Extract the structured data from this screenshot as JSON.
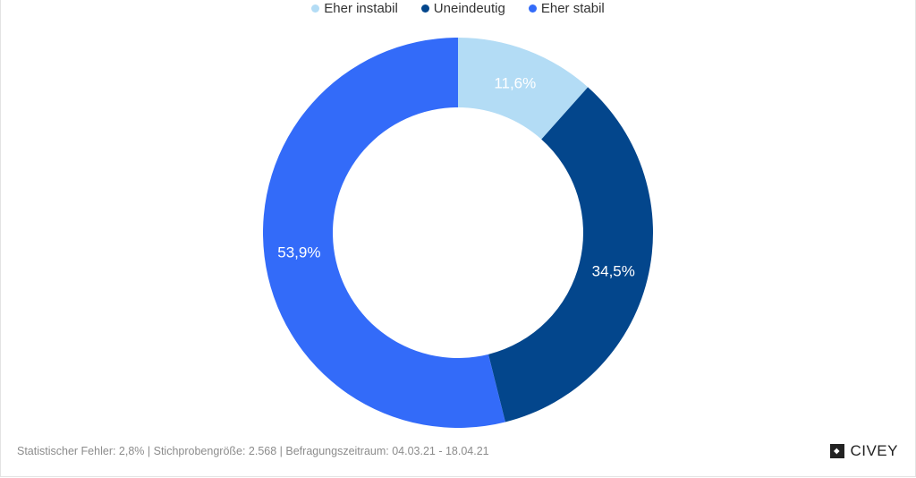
{
  "chart_data": {
    "type": "pie",
    "donut": true,
    "series": [
      {
        "name": "Eher instabil",
        "value": 11.6,
        "label": "11,6%",
        "color": "#b3dcf5"
      },
      {
        "name": "Uneindeutig",
        "value": 34.5,
        "label": "34,5%",
        "color": "#03468c"
      },
      {
        "name": "Eher stabil",
        "value": 53.9,
        "label": "53,9%",
        "color": "#336bf9"
      }
    ],
    "legend_position": "top-center"
  },
  "footer": {
    "note": "Statistischer Fehler: 2,8% | Stichprobengröße: 2.568 | Befragungszeitraum: 04.03.21 - 18.04.21"
  },
  "brand": {
    "name": "CIVEY",
    "icon": "civey-logo-icon"
  }
}
